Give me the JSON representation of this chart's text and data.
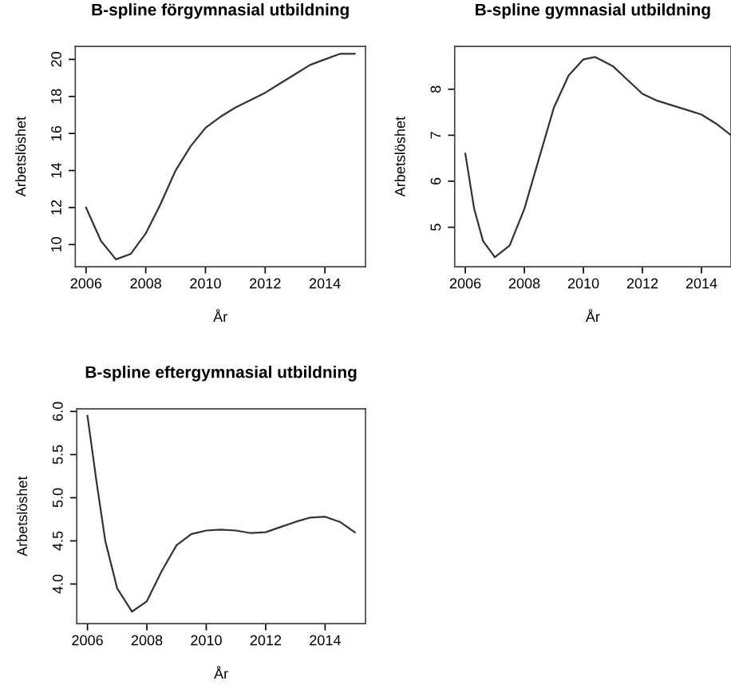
{
  "chart_data": [
    {
      "type": "line",
      "title": "B-spline förgymnasial utbildning",
      "xlabel": "År",
      "ylabel": "Arbetslöshet",
      "grid": false,
      "marker": "none",
      "line_style": "solid",
      "xlim": [
        2005.64,
        2015.36
      ],
      "ylim": [
        8.8,
        20.7
      ],
      "xticks": [
        2006,
        2008,
        2010,
        2012,
        2014
      ],
      "yticks": [
        10,
        12,
        14,
        16,
        18,
        20
      ],
      "series": [
        {
          "color": "#333333",
          "x": [
            2006,
            2006.5,
            2007,
            2007.5,
            2008,
            2008.5,
            2009,
            2009.5,
            2010,
            2010.5,
            2011,
            2011.5,
            2012,
            2012.5,
            2013,
            2013.5,
            2014,
            2014.5,
            2015
          ],
          "values": [
            12.0,
            10.2,
            9.2,
            9.5,
            10.6,
            12.2,
            14.0,
            15.3,
            16.3,
            16.9,
            17.4,
            17.8,
            18.2,
            18.7,
            19.2,
            19.7,
            20.0,
            20.3,
            20.3
          ]
        }
      ]
    },
    {
      "type": "line",
      "title": "B-spline gymnasial utbildning",
      "xlabel": "År",
      "ylabel": "Arbetslöshet",
      "grid": false,
      "marker": "none",
      "line_style": "solid",
      "xlim": [
        2005.64,
        2015.0
      ],
      "ylim": [
        4.14,
        8.93
      ],
      "xticks": [
        2006,
        2008,
        2010,
        2012,
        2014
      ],
      "yticks": [
        5,
        6,
        7,
        8
      ],
      "series": [
        {
          "color": "#333333",
          "x": [
            2006,
            2006.3,
            2006.6,
            2007,
            2007.5,
            2008,
            2008.5,
            2009,
            2009.5,
            2010,
            2010.4,
            2011,
            2011.5,
            2012,
            2012.5,
            2013,
            2013.5,
            2014,
            2014.5,
            2015
          ],
          "values": [
            6.6,
            5.4,
            4.7,
            4.35,
            4.6,
            5.4,
            6.5,
            7.6,
            8.3,
            8.65,
            8.7,
            8.5,
            8.2,
            7.9,
            7.75,
            7.65,
            7.55,
            7.45,
            7.25,
            7.0
          ]
        }
      ]
    },
    {
      "type": "line",
      "title": "B-spline eftergymnasial utbildning",
      "xlabel": "År",
      "ylabel": "Arbetslöshet",
      "grid": false,
      "marker": "none",
      "line_style": "solid",
      "xlim": [
        2005.64,
        2015.36
      ],
      "ylim": [
        3.54,
        6.03
      ],
      "xticks": [
        2006,
        2008,
        2010,
        2012,
        2014
      ],
      "yticks": [
        {
          "value": 4,
          "label": "4.0"
        },
        {
          "value": 4.5,
          "label": "4.5"
        },
        {
          "value": 5,
          "label": "5.0"
        },
        {
          "value": 5.5,
          "label": "5.5"
        },
        {
          "value": 6,
          "label": "6.0"
        }
      ],
      "series": [
        {
          "color": "#333333",
          "x": [
            2006,
            2006.3,
            2006.6,
            2007,
            2007.5,
            2008,
            2008.5,
            2009,
            2009.5,
            2010,
            2010.5,
            2011,
            2011.5,
            2012,
            2012.5,
            2013,
            2013.5,
            2014,
            2014.5,
            2015
          ],
          "values": [
            5.95,
            5.2,
            4.5,
            3.95,
            3.68,
            3.8,
            4.15,
            4.45,
            4.58,
            4.62,
            4.63,
            4.62,
            4.59,
            4.6,
            4.66,
            4.72,
            4.77,
            4.78,
            4.72,
            4.6
          ]
        }
      ]
    }
  ]
}
